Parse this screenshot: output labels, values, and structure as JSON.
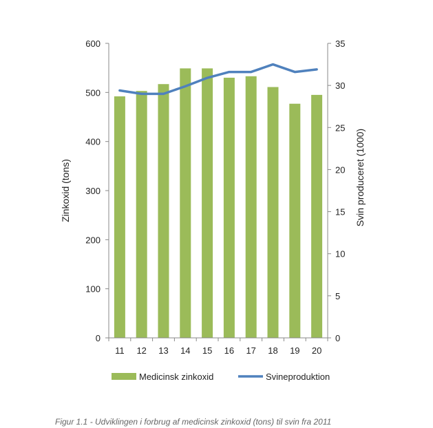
{
  "chart_data": {
    "type": "bar+line",
    "categories": [
      "11",
      "12",
      "13",
      "14",
      "15",
      "16",
      "17",
      "18",
      "19",
      "20"
    ],
    "series": [
      {
        "name": "Medicinsk zinkoxid",
        "type": "bar",
        "axis": "left",
        "color": "#9BBB59",
        "values": [
          492,
          503,
          517,
          549,
          549,
          530,
          533,
          511,
          477,
          495
        ]
      },
      {
        "name": "Svineproduktion",
        "type": "line",
        "axis": "right",
        "color": "#4F81BD",
        "values": [
          29.4,
          29.0,
          29.0,
          29.9,
          30.9,
          31.6,
          31.6,
          32.5,
          31.6,
          31.9
        ]
      }
    ],
    "ylabel": "Zinkoxid  (tons)",
    "ylim": [
      0,
      600
    ],
    "yticks": [
      "0",
      "100",
      "200",
      "300",
      "400",
      "500",
      "600"
    ],
    "y2label": "Svin produceret (1000)",
    "y2lim": [
      0,
      35
    ],
    "y2ticks": [
      "0",
      "5",
      "10",
      "15",
      "20",
      "25",
      "30",
      "35"
    ],
    "legend_position": "bottom",
    "grid": false
  },
  "caption": "Figur 1.1 - Udviklingen i forbrug af medicinsk zinkoxid (tons) til svin fra 2011"
}
